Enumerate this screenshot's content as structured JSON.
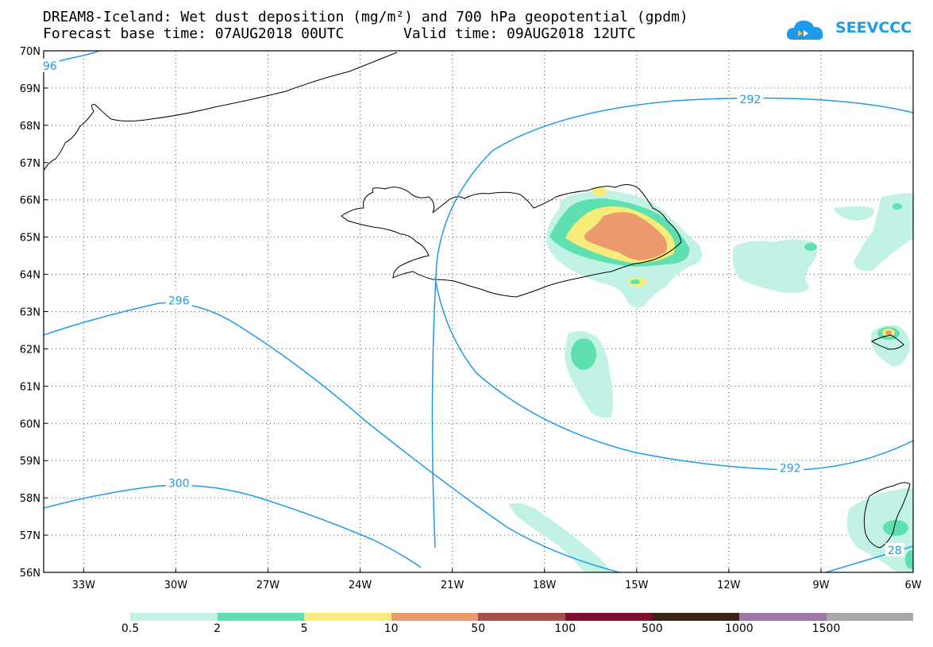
{
  "header": {
    "title": "DREAM8-Iceland: Wet dust deposition (mg/m²) and 700 hPa geopotential (gpdm)",
    "base_time": "Forecast base time: 07AUG2018 00UTC",
    "valid_time": "Valid time: 09AUG2018 12UTC"
  },
  "logo": {
    "text": "SEEVCCC",
    "icon": "cloud-icon"
  },
  "map": {
    "lat_labels": [
      "70N",
      "69N",
      "68N",
      "67N",
      "66N",
      "65N",
      "64N",
      "63N",
      "62N",
      "61N",
      "60N",
      "59N",
      "58N",
      "57N",
      "56N"
    ],
    "lon_labels": [
      "33W",
      "30W",
      "27W",
      "24W",
      "21W",
      "18W",
      "15W",
      "12W",
      "9W",
      "6W"
    ],
    "lon_range": [
      -34.3,
      -6
    ],
    "lat_range": [
      56,
      70
    ],
    "grid": "dotted",
    "contour_labels": [
      {
        "text": "292",
        "lon": -11.3,
        "lat": 68.7
      },
      {
        "text": "292",
        "lon": -10.0,
        "lat": 58.8
      },
      {
        "text": "296",
        "lon": -29.9,
        "lat": 63.3
      },
      {
        "text": "300",
        "lon": -29.9,
        "lat": 58.4
      },
      {
        "text": "96",
        "lon": -34.1,
        "lat": 69.6
      },
      {
        "text": "28",
        "lon": -6.6,
        "lat": 56.6
      }
    ]
  },
  "legend": {
    "colors": [
      "#c2f2e6",
      "#5ee0b0",
      "#f7ec7a",
      "#ea9a6c",
      "#a85047",
      "#820c2e",
      "#3a2418",
      "#9a78a8",
      "#a8a8a8"
    ],
    "labels": [
      "0.5",
      "2",
      "5",
      "10",
      "50",
      "100",
      "500",
      "1000",
      "1500"
    ]
  }
}
